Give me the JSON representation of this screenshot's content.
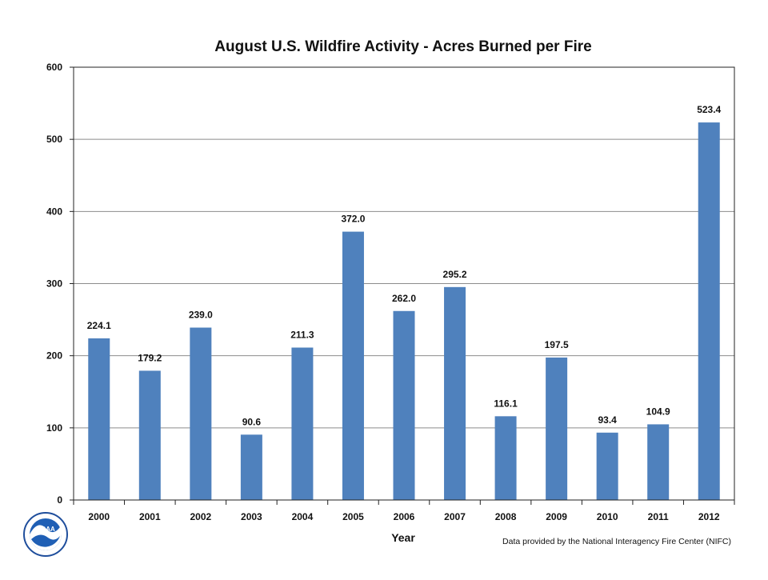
{
  "chart_data": {
    "type": "bar",
    "title": "August U.S. Wildfire Activity - Acres Burned per Fire",
    "xlabel": "Year",
    "ylabel": "",
    "categories": [
      "2000",
      "2001",
      "2002",
      "2003",
      "2004",
      "2005",
      "2006",
      "2007",
      "2008",
      "2009",
      "2010",
      "2011",
      "2012"
    ],
    "values": [
      224.1,
      179.2,
      239.0,
      90.6,
      211.3,
      372.0,
      262.0,
      295.2,
      116.1,
      197.5,
      93.4,
      104.9,
      523.4
    ],
    "data_labels": [
      "224.1",
      "179.2",
      "239.0",
      "90.6",
      "211.3",
      "372.0",
      "262.0",
      "295.2",
      "116.1",
      "197.5",
      "93.4",
      "104.9",
      "523.4"
    ],
    "ylim": [
      0,
      600
    ],
    "yticks": [
      "0",
      "100",
      "200",
      "300",
      "400",
      "500",
      "600"
    ],
    "grid": true,
    "bar_color": "#4F81BD"
  },
  "credit": "Data provided by the National Interagency Fire Center  (NIFC)",
  "logo": {
    "text": "NOAA",
    "icon": "noaa-logo-icon"
  }
}
